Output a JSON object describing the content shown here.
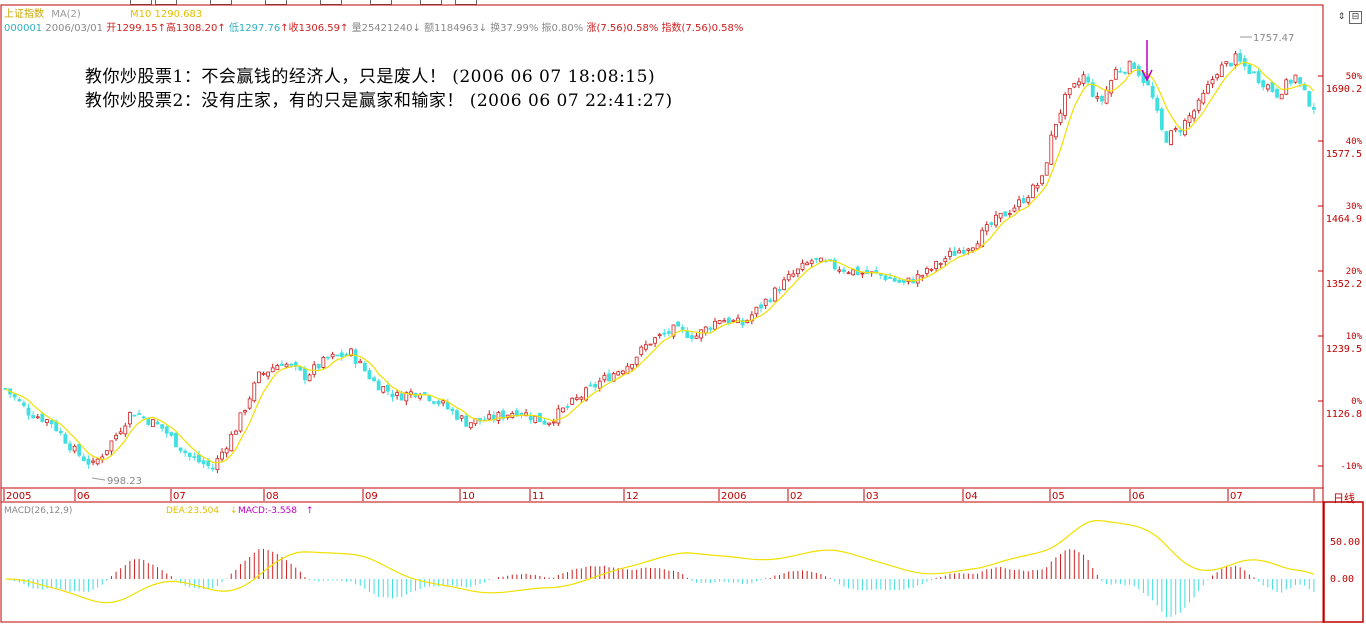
{
  "header": {
    "index_name": "上证指数",
    "ma_label": "MA(2)",
    "ma_value": "M10 1290.683"
  },
  "quote_line": {
    "code": "000001",
    "date": "2006/03/01",
    "open": "开1299.15",
    "high": "高1308.20",
    "low": "低1297.76",
    "close": "收1306.59",
    "volume": "量25421240",
    "amount": "额1184963",
    "turnover": "换37.99%",
    "amplitude": "振0.80%",
    "change": "涨(7.56)0.58%",
    "index_change": "指数(7.56)0.58%"
  },
  "notes": {
    "line1": "教你炒股票1：不会赢钱的经济人，只是废人！ (2006 06 07 18:08:15)",
    "line2": "教你炒股票2：没有庄家，有的只是赢家和输家！ (2006 06 07 22:41:27)"
  },
  "price_axis": {
    "labels": [
      {
        "pct": "50%",
        "price": "1690.2"
      },
      {
        "pct": "40%",
        "price": "1577.5"
      },
      {
        "pct": "30%",
        "price": "1464.9"
      },
      {
        "pct": "20%",
        "price": "1352.2"
      },
      {
        "pct": "10%",
        "price": "1239.5"
      },
      {
        "pct": "0%",
        "price": "1126.8"
      },
      {
        "pct": "-10%",
        "price": ""
      }
    ]
  },
  "markers": {
    "low_label": "998.23",
    "high_label": "1757.47"
  },
  "time_axis": [
    "2005",
    "06",
    "07",
    "08",
    "09",
    "10",
    "11",
    "12",
    "2006",
    "02",
    "03",
    "04",
    "05",
    "06",
    "07"
  ],
  "period": "日线",
  "macd": {
    "title": "MACD(26,12,9)",
    "dea_label": "DEA:23.504",
    "macd_label": "MACD:-3.558",
    "axis": [
      "50.00",
      "0.00"
    ]
  },
  "window_buttons": {
    "arrow": "⇕",
    "menu": "⊟"
  },
  "colors": {
    "up": "#d02020",
    "down": "#40e0e0",
    "ma": "#f0e000",
    "dea_line": "#f0e000",
    "arrow": "#c000c0",
    "border": "#c00000"
  },
  "chart_data": {
    "type": "candlestick",
    "y_range": [
      998.23,
      1757.47
    ],
    "series_ma_label": "M10",
    "anchor_closes": [
      [
        0,
        1148
      ],
      [
        10,
        1108
      ],
      [
        20,
        1090
      ],
      [
        30,
        1040
      ],
      [
        38,
        1015
      ],
      [
        45,
        1050
      ],
      [
        55,
        1110
      ],
      [
        68,
        1080
      ],
      [
        80,
        1030
      ],
      [
        90,
        1010
      ],
      [
        100,
        1080
      ],
      [
        110,
        1170
      ],
      [
        120,
        1195
      ],
      [
        130,
        1170
      ],
      [
        140,
        1200
      ],
      [
        150,
        1210
      ],
      [
        160,
        1160
      ],
      [
        170,
        1135
      ],
      [
        180,
        1145
      ],
      [
        190,
        1120
      ],
      [
        200,
        1090
      ],
      [
        210,
        1095
      ],
      [
        222,
        1110
      ],
      [
        235,
        1090
      ],
      [
        245,
        1120
      ],
      [
        258,
        1160
      ],
      [
        270,
        1190
      ],
      [
        280,
        1230
      ],
      [
        290,
        1250
      ],
      [
        300,
        1240
      ],
      [
        310,
        1270
      ],
      [
        320,
        1260
      ],
      [
        330,
        1300
      ],
      [
        340,
        1340
      ],
      [
        350,
        1370
      ],
      [
        360,
        1360
      ],
      [
        370,
        1350
      ],
      [
        380,
        1345
      ],
      [
        390,
        1330
      ],
      [
        400,
        1350
      ],
      [
        410,
        1380
      ],
      [
        420,
        1400
      ],
      [
        430,
        1440
      ],
      [
        440,
        1470
      ],
      [
        450,
        1510
      ],
      [
        455,
        1600
      ],
      [
        460,
        1650
      ],
      [
        468,
        1690
      ],
      [
        475,
        1640
      ],
      [
        482,
        1700
      ],
      [
        490,
        1710
      ],
      [
        497,
        1665
      ],
      [
        503,
        1580
      ],
      [
        510,
        1600
      ],
      [
        518,
        1640
      ],
      [
        526,
        1700
      ],
      [
        534,
        1720
      ],
      [
        540,
        1700
      ],
      [
        546,
        1680
      ],
      [
        552,
        1660
      ],
      [
        560,
        1690
      ],
      [
        565,
        1650
      ],
      [
        570,
        1630
      ]
    ]
  }
}
